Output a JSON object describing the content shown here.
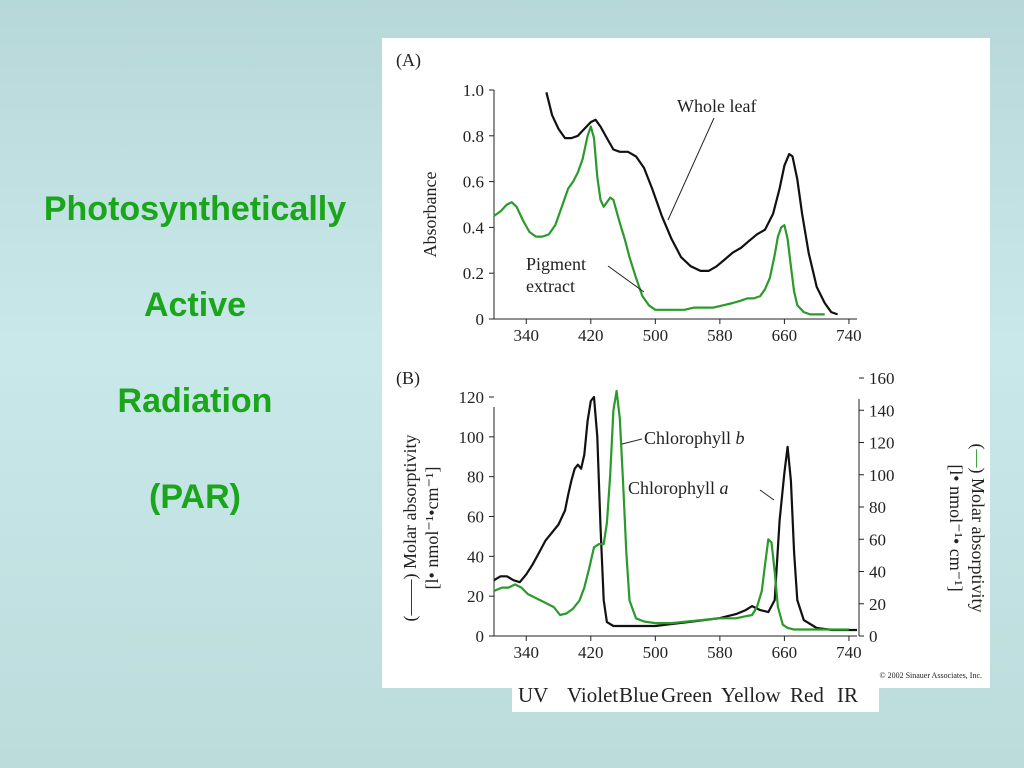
{
  "slide": {
    "title_lines": [
      "Photosynthetically",
      "Active",
      "Radiation",
      "(PAR)"
    ],
    "title_color": "#1aa51a",
    "background_color": "#c4e2e3"
  },
  "figure": {
    "panel_a_label": "(A)",
    "panel_b_label": "(B)",
    "copyright": "© 2002 Sinauer Associates, Inc.",
    "spectrum_bands": [
      "UV",
      "Violet",
      "Blue",
      "Green",
      "Yellow",
      "Red",
      "IR"
    ]
  },
  "chart_data": [
    {
      "type": "line",
      "panel": "(A)",
      "xlabel": "",
      "ylabel": "Absorbance",
      "xlim": [
        300,
        750
      ],
      "ylim": [
        0,
        1.0
      ],
      "xticks": [
        340,
        420,
        500,
        580,
        660,
        740
      ],
      "yticks": [
        "0",
        "0.2",
        "0.4",
        "0.6",
        "0.8",
        "1.0"
      ],
      "series": [
        {
          "name": "Whole leaf",
          "color": "#111111",
          "x": [
            365,
            372,
            380,
            388,
            396,
            404,
            412,
            420,
            426,
            432,
            440,
            448,
            456,
            466,
            476,
            486,
            496,
            508,
            520,
            532,
            544,
            556,
            566,
            576,
            586,
            596,
            606,
            616,
            626,
            636,
            646,
            654,
            660,
            666,
            670,
            676,
            682,
            690,
            700,
            710,
            718,
            726
          ],
          "y": [
            0.99,
            0.89,
            0.83,
            0.79,
            0.79,
            0.8,
            0.83,
            0.86,
            0.87,
            0.84,
            0.79,
            0.74,
            0.73,
            0.73,
            0.71,
            0.66,
            0.57,
            0.45,
            0.35,
            0.27,
            0.23,
            0.21,
            0.21,
            0.23,
            0.26,
            0.29,
            0.31,
            0.34,
            0.37,
            0.39,
            0.46,
            0.57,
            0.67,
            0.72,
            0.71,
            0.61,
            0.46,
            0.29,
            0.14,
            0.07,
            0.03,
            0.02
          ]
        },
        {
          "name": "Pigment extract",
          "color": "#2a9a2a",
          "x": [
            300,
            308,
            316,
            322,
            328,
            336,
            344,
            352,
            360,
            368,
            376,
            384,
            392,
            398,
            404,
            410,
            416,
            420,
            424,
            428,
            432,
            436,
            440,
            444,
            448,
            452,
            456,
            462,
            468,
            476,
            484,
            492,
            500,
            512,
            524,
            536,
            548,
            560,
            572,
            584,
            596,
            606,
            614,
            622,
            630,
            636,
            642,
            648,
            652,
            656,
            660,
            664,
            668,
            672,
            676,
            684,
            692,
            700,
            710
          ],
          "y": [
            0.45,
            0.47,
            0.5,
            0.51,
            0.49,
            0.43,
            0.38,
            0.36,
            0.36,
            0.37,
            0.41,
            0.49,
            0.57,
            0.6,
            0.64,
            0.7,
            0.8,
            0.84,
            0.79,
            0.62,
            0.52,
            0.49,
            0.51,
            0.53,
            0.52,
            0.47,
            0.42,
            0.35,
            0.27,
            0.18,
            0.1,
            0.06,
            0.04,
            0.04,
            0.04,
            0.04,
            0.05,
            0.05,
            0.05,
            0.06,
            0.07,
            0.08,
            0.09,
            0.09,
            0.1,
            0.13,
            0.18,
            0.28,
            0.36,
            0.4,
            0.41,
            0.35,
            0.23,
            0.12,
            0.06,
            0.03,
            0.02,
            0.02,
            0.02
          ]
        }
      ]
    },
    {
      "type": "line",
      "panel": "(B)",
      "xlabel": "",
      "ylabel_left": "(——) Molar absorptivity [l• nmol⁻¹•cm⁻¹]",
      "ylabel_right": "(—) Molar absorptivity [l• nmol⁻¹• cm⁻¹]",
      "xlim": [
        300,
        750
      ],
      "ylim_left": [
        0,
        120
      ],
      "ylim_right": [
        0,
        160
      ],
      "xticks": [
        340,
        420,
        500,
        580,
        660,
        740
      ],
      "yticks_left": [
        "0",
        "20",
        "40",
        "60",
        "80",
        "100",
        "120"
      ],
      "yticks_right": [
        "0",
        "20",
        "40",
        "60",
        "80",
        "100",
        "120",
        "140",
        "160"
      ],
      "series": [
        {
          "name": "Chlorophyll a",
          "axis": "left",
          "color": "#111111",
          "x": [
            300,
            308,
            316,
            324,
            332,
            340,
            348,
            356,
            364,
            372,
            380,
            388,
            392,
            396,
            400,
            404,
            408,
            412,
            416,
            420,
            424,
            428,
            432,
            436,
            440,
            448,
            460,
            480,
            500,
            520,
            540,
            560,
            580,
            600,
            612,
            620,
            630,
            640,
            648,
            654,
            660,
            664,
            668,
            672,
            676,
            684,
            700,
            720,
            740,
            750
          ],
          "y": [
            28,
            30,
            30,
            28,
            27,
            31,
            36,
            42,
            48,
            52,
            56,
            63,
            71,
            78,
            84,
            86,
            84,
            91,
            108,
            118,
            120,
            100,
            55,
            18,
            7,
            5,
            5,
            5,
            5,
            6,
            7,
            8,
            9,
            11,
            13,
            15,
            13,
            12,
            18,
            58,
            82,
            95,
            78,
            42,
            18,
            8,
            4,
            3,
            3,
            3
          ]
        },
        {
          "name": "Chlorophyll b",
          "axis": "right",
          "color": "#2a9a2a",
          "x": [
            300,
            310,
            318,
            326,
            334,
            342,
            350,
            358,
            366,
            374,
            382,
            390,
            398,
            406,
            412,
            418,
            424,
            430,
            436,
            440,
            444,
            448,
            452,
            456,
            460,
            464,
            468,
            476,
            486,
            500,
            520,
            540,
            560,
            580,
            600,
            610,
            620,
            626,
            632,
            636,
            640,
            644,
            648,
            652,
            658,
            664,
            672,
            690,
            710,
            740
          ],
          "y": [
            28,
            30,
            30,
            32,
            30,
            26,
            24,
            22,
            20,
            18,
            13,
            14,
            17,
            22,
            30,
            42,
            55,
            57,
            57,
            70,
            100,
            140,
            152,
            135,
            95,
            52,
            22,
            11,
            9,
            8,
            8,
            9,
            10,
            11,
            11,
            12,
            13,
            18,
            28,
            44,
            60,
            58,
            40,
            18,
            7,
            5,
            4,
            4,
            4,
            4
          ]
        }
      ]
    }
  ]
}
